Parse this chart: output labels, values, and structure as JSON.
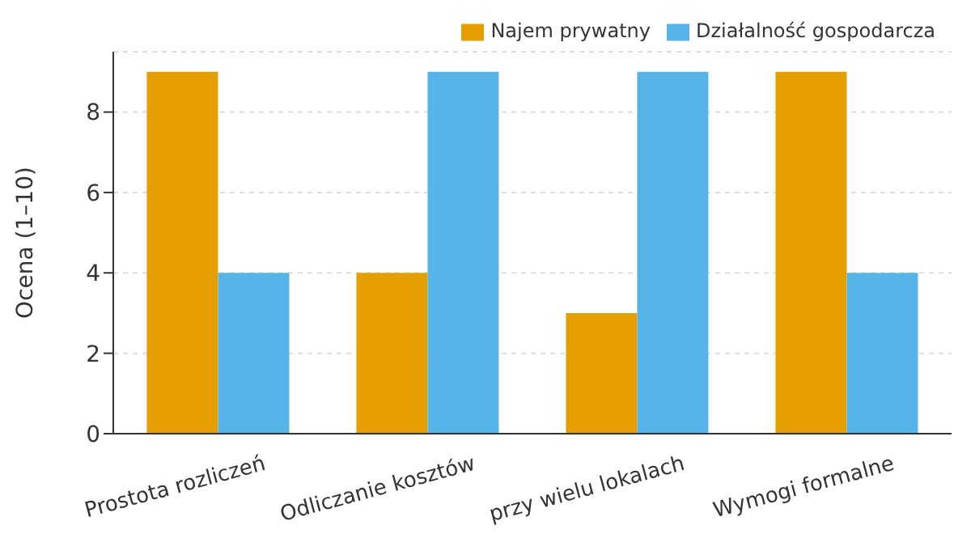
{
  "chart_data": {
    "type": "bar",
    "ylabel": "Ocena (1–10)",
    "categories": [
      "Prostota rozliczeń",
      "Odliczanie kosztów",
      "przy wielu lokalach",
      "Wymogi formalne"
    ],
    "series": [
      {
        "name": "Najem prywatny",
        "color": "#e69f00",
        "values": [
          9,
          4,
          3,
          9
        ]
      },
      {
        "name": "Działalność gospodarcza",
        "color": "#56b4e9",
        "values": [
          4,
          9,
          9,
          4
        ]
      }
    ],
    "ylim": [
      0,
      9.5
    ],
    "yticks": [
      0,
      2,
      4,
      6,
      8
    ],
    "grid": "y",
    "legend": "top right"
  }
}
